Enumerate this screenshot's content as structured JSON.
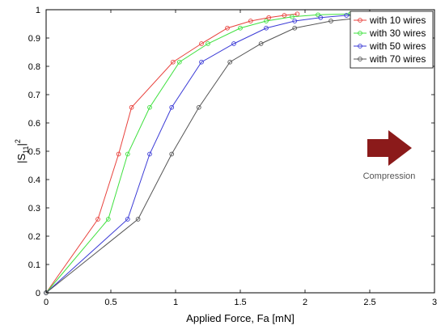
{
  "chart_data": {
    "type": "line",
    "xlabel": "Applied Force, Fa [mN]",
    "ylabel_main": "|S",
    "ylabel_sub": "11",
    "ylabel_tail": "|",
    "ylabel_sup": "2",
    "xlim": [
      0,
      3
    ],
    "ylim": [
      0,
      1
    ],
    "x_ticks": [
      "0",
      "0.5",
      "1",
      "1.5",
      "2",
      "2.5",
      "3"
    ],
    "y_ticks": [
      "0",
      "0.1",
      "0.2",
      "0.3",
      "0.4",
      "0.5",
      "0.6",
      "0.7",
      "0.8",
      "0.9",
      "1"
    ],
    "grid": false,
    "legend_position": "top-right",
    "annotation": "Compression",
    "arrow_color": "#8b1a1a",
    "series": [
      {
        "name": "with 10 wires",
        "color": "#e8413c",
        "x": [
          0,
          0.4,
          0.56,
          0.66,
          0.98,
          1.2,
          1.4,
          1.58,
          1.72,
          1.84,
          1.94
        ],
        "y": [
          0,
          0.26,
          0.49,
          0.655,
          0.815,
          0.88,
          0.935,
          0.96,
          0.972,
          0.98,
          0.985
        ]
      },
      {
        "name": "with 30 wires",
        "color": "#3ee03e",
        "x": [
          0,
          0.48,
          0.63,
          0.8,
          1.03,
          1.25,
          1.5,
          1.7,
          1.9,
          2.1,
          2.35
        ],
        "y": [
          0,
          0.26,
          0.49,
          0.655,
          0.815,
          0.88,
          0.935,
          0.96,
          0.975,
          0.982,
          0.985
        ]
      },
      {
        "name": "with 50 wires",
        "color": "#3b3bd6",
        "x": [
          0,
          0.63,
          0.8,
          0.97,
          1.2,
          1.45,
          1.7,
          1.92,
          2.12,
          2.32,
          2.52
        ],
        "y": [
          0,
          0.26,
          0.49,
          0.655,
          0.815,
          0.88,
          0.935,
          0.96,
          0.972,
          0.98,
          0.985
        ]
      },
      {
        "name": "with 70 wires",
        "color": "#555555",
        "x": [
          0,
          0.71,
          0.97,
          1.18,
          1.42,
          1.66,
          1.92,
          2.2,
          2.45,
          2.7,
          2.95
        ],
        "y": [
          0,
          0.26,
          0.49,
          0.655,
          0.815,
          0.88,
          0.935,
          0.96,
          0.972,
          0.98,
          0.985
        ]
      }
    ]
  }
}
